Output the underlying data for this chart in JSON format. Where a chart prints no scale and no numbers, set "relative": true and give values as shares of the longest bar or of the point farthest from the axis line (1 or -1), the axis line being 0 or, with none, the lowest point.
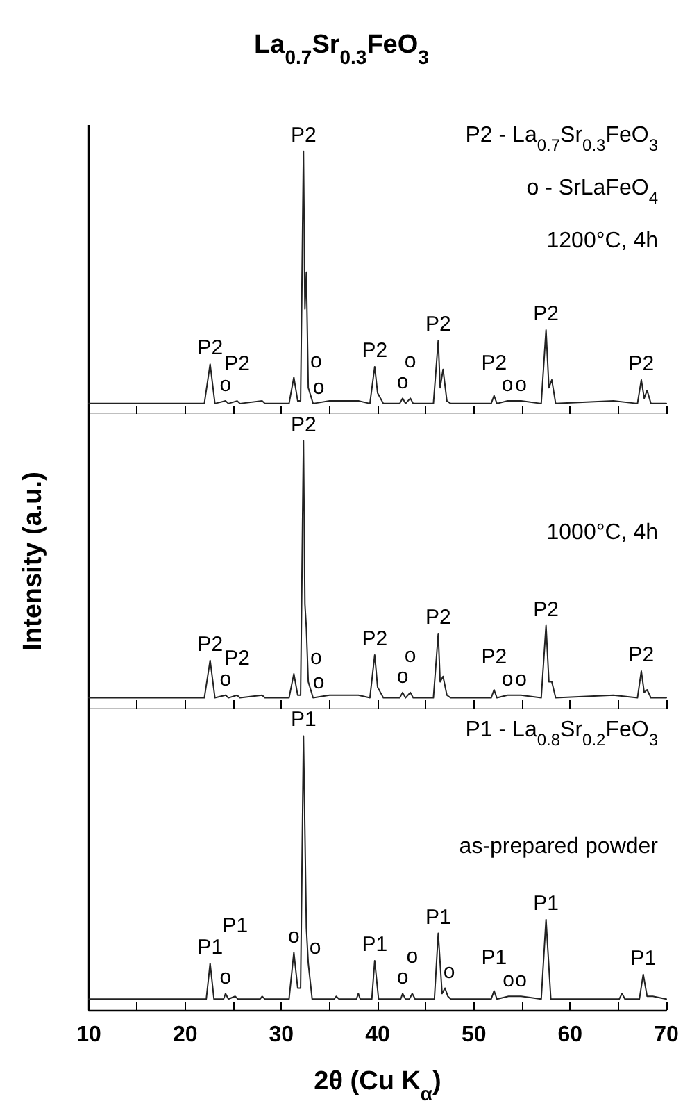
{
  "chart_data": [
    {
      "type": "line",
      "title": "La$_{0.7}$Sr$_{0.3}$FeO$_{3}$",
      "relative": true,
      "color": "#222222",
      "xlim": [
        10,
        70
      ],
      "xticks": [
        10,
        {
          "value": 15,
          "label": null
        },
        20,
        {
          "value": 25,
          "label": null
        },
        30,
        {
          "value": 35,
          "label": null
        },
        40,
        {
          "value": 45,
          "label": null
        },
        50,
        {
          "value": 55,
          "label": null
        },
        60,
        {
          "value": 65,
          "label": null
        },
        70
      ],
      "tick_labels": false,
      "x": [
        10,
        22.0,
        22.6,
        23.1,
        24.2,
        24.5,
        25.4,
        25.7,
        28,
        28.3,
        30.8,
        31.3,
        31.7,
        32.0,
        32.3,
        32.45,
        32.6,
        32.8,
        33.3,
        35,
        38,
        39.2,
        39.7,
        40.0,
        40.3,
        40.6,
        42.3,
        42.6,
        42.9,
        43.4,
        43.7,
        45.8,
        46.3,
        46.5,
        46.8,
        47.2,
        47.6,
        51.8,
        52.1,
        52.4,
        53.5,
        54.9,
        57.0,
        57.5,
        57.8,
        58.1,
        58.5,
        64.5,
        67.0,
        67.4,
        67.7,
        68.0,
        68.4,
        70
      ],
      "values": [
        0.04,
        0.04,
        0.19,
        0.04,
        0.05,
        0.04,
        0.05,
        0.04,
        0.05,
        0.04,
        0.04,
        0.14,
        0.05,
        0.05,
        1.0,
        0.4,
        0.54,
        0.1,
        0.04,
        0.05,
        0.05,
        0.04,
        0.18,
        0.08,
        0.06,
        0.04,
        0.04,
        0.06,
        0.04,
        0.06,
        0.04,
        0.04,
        0.28,
        0.1,
        0.17,
        0.05,
        0.04,
        0.04,
        0.07,
        0.04,
        0.05,
        0.05,
        0.04,
        0.32,
        0.1,
        0.13,
        0.04,
        0.05,
        0.04,
        0.13,
        0.06,
        0.09,
        0.04,
        0.04
      ],
      "annotations": [
        "P2 - La$_{0.7}$Sr$_{0.3}$FeO$_{3}$",
        "o - SrLaFeO$_{4}$",
        "1200°C, 4h",
        {
          "text": "P2",
          "x": 22.6,
          "y": 0.19
        },
        {
          "text": "o",
          "x": 24.2,
          "y": 0.05
        },
        {
          "text": "P2",
          "x": 25.4,
          "y": 0.05
        },
        {
          "text": "o",
          "x": 31.3,
          "y": 0.14
        },
        {
          "text": "P2",
          "x": 32.3,
          "y": 1.0
        },
        {
          "text": "o",
          "x": 33.3,
          "y": 0.04
        },
        {
          "text": "P2",
          "x": 39.7,
          "y": 0.18
        },
        {
          "text": "o",
          "x": 42.6,
          "y": 0.06
        },
        {
          "text": "o",
          "x": 43.4,
          "y": 0.06
        },
        {
          "text": "P2",
          "x": 46.3,
          "y": 0.28
        },
        {
          "text": "o",
          "x": 53.5,
          "y": 0.05
        },
        {
          "text": "o",
          "x": 54.9,
          "y": 0.05
        },
        {
          "text": "P2",
          "x": 52.1,
          "y": 0.07
        },
        {
          "text": "P2",
          "x": 57.5,
          "y": 0.32
        },
        {
          "text": "P2",
          "x": 67.4,
          "y": 0.13
        }
      ]
    },
    {
      "type": "line",
      "ylabel": "Intensity (a.u.)",
      "relative": true,
      "color": "#222222",
      "xlim": [
        10,
        70
      ],
      "xticks": [
        10,
        {
          "value": 15,
          "label": null
        },
        20,
        {
          "value": 25,
          "label": null
        },
        30,
        {
          "value": 35,
          "label": null
        },
        40,
        {
          "value": 45,
          "label": null
        },
        50,
        {
          "value": 55,
          "label": null
        },
        60,
        {
          "value": 65,
          "label": null
        },
        70
      ],
      "tick_labels": false,
      "x": [
        10,
        22.0,
        22.6,
        23.1,
        24.2,
        24.5,
        25.4,
        25.7,
        28,
        28.3,
        30.8,
        31.3,
        31.7,
        32.0,
        32.3,
        32.45,
        32.6,
        32.8,
        33.3,
        35,
        38,
        39.2,
        39.7,
        40.0,
        40.3,
        40.6,
        42.3,
        42.6,
        42.9,
        43.4,
        43.7,
        45.8,
        46.3,
        46.5,
        46.8,
        47.2,
        47.6,
        51.8,
        52.1,
        52.4,
        53.5,
        54.9,
        57.0,
        57.5,
        57.8,
        58.1,
        58.5,
        64.5,
        67.0,
        67.4,
        67.7,
        68.0,
        68.4,
        70
      ],
      "values": [
        0.04,
        0.04,
        0.18,
        0.04,
        0.05,
        0.04,
        0.05,
        0.04,
        0.05,
        0.04,
        0.04,
        0.13,
        0.05,
        0.05,
        1.0,
        0.39,
        0.3,
        0.1,
        0.04,
        0.05,
        0.05,
        0.04,
        0.2,
        0.08,
        0.06,
        0.04,
        0.04,
        0.06,
        0.04,
        0.06,
        0.04,
        0.04,
        0.28,
        0.1,
        0.12,
        0.05,
        0.04,
        0.04,
        0.07,
        0.04,
        0.05,
        0.05,
        0.04,
        0.31,
        0.1,
        0.1,
        0.04,
        0.05,
        0.04,
        0.14,
        0.06,
        0.07,
        0.04,
        0.04
      ],
      "annotations": [
        "1000°C, 4h",
        {
          "text": "P2",
          "x": 22.6,
          "y": 0.18
        },
        {
          "text": "o",
          "x": 24.2,
          "y": 0.05
        },
        {
          "text": "P2",
          "x": 25.4,
          "y": 0.05
        },
        {
          "text": "o",
          "x": 31.3,
          "y": 0.13
        },
        {
          "text": "P2",
          "x": 32.3,
          "y": 1.0
        },
        {
          "text": "o",
          "x": 33.3,
          "y": 0.04
        },
        {
          "text": "P2",
          "x": 39.7,
          "y": 0.2
        },
        {
          "text": "o",
          "x": 42.6,
          "y": 0.06
        },
        {
          "text": "o",
          "x": 43.4,
          "y": 0.06
        },
        {
          "text": "P2",
          "x": 46.3,
          "y": 0.28
        },
        {
          "text": "o",
          "x": 53.5,
          "y": 0.05
        },
        {
          "text": "o",
          "x": 54.9,
          "y": 0.05
        },
        {
          "text": "P2",
          "x": 52.1,
          "y": 0.07
        },
        {
          "text": "P2",
          "x": 57.5,
          "y": 0.31
        },
        {
          "text": "P2",
          "x": 67.4,
          "y": 0.14
        }
      ]
    },
    {
      "type": "line",
      "xlabel": "2θ (Cu K$_{α}$)",
      "relative": true,
      "color": "#222222",
      "xlim": [
        10,
        70
      ],
      "xticks": [
        10,
        {
          "value": 15,
          "label": null
        },
        20,
        {
          "value": 25,
          "label": null
        },
        30,
        {
          "value": 35,
          "label": null
        },
        40,
        {
          "value": 45,
          "label": null
        },
        50,
        {
          "value": 55,
          "label": null
        },
        60,
        {
          "value": 65,
          "label": null
        },
        70
      ],
      "tick_labels": "x",
      "x": [
        10,
        22.2,
        22.6,
        23.0,
        24.0,
        24.2,
        24.5,
        25.2,
        25.5,
        27.8,
        28.0,
        28.3,
        30.8,
        31.3,
        31.7,
        32.0,
        32.3,
        32.6,
        32.8,
        33.2,
        35.5,
        35.7,
        36,
        37.8,
        38.0,
        38.2,
        39.4,
        39.7,
        40.1,
        42.4,
        42.6,
        42.9,
        43.3,
        43.6,
        43.9,
        45.9,
        46.3,
        46.7,
        47.0,
        47.3,
        47.6,
        51.8,
        52.1,
        52.4,
        53.6,
        54.9,
        57.0,
        57.5,
        58.0,
        65.1,
        65.4,
        65.7,
        67.2,
        67.6,
        68.0,
        68.6,
        70
      ],
      "values": [
        0.04,
        0.04,
        0.17,
        0.04,
        0.04,
        0.06,
        0.04,
        0.05,
        0.04,
        0.04,
        0.05,
        0.04,
        0.04,
        0.21,
        0.08,
        0.08,
        1.0,
        0.3,
        0.17,
        0.04,
        0.04,
        0.05,
        0.04,
        0.04,
        0.06,
        0.04,
        0.04,
        0.18,
        0.04,
        0.04,
        0.06,
        0.04,
        0.04,
        0.06,
        0.04,
        0.04,
        0.28,
        0.06,
        0.08,
        0.05,
        0.04,
        0.04,
        0.07,
        0.04,
        0.05,
        0.05,
        0.04,
        0.33,
        0.04,
        0.04,
        0.06,
        0.04,
        0.04,
        0.13,
        0.05,
        0.05,
        0.04
      ],
      "annotations": [
        "P1 - La$_{0.8}$Sr$_{0.2}$FeO$_{3}$",
        "as-prepared powder",
        {
          "text": "P1",
          "x": 22.6,
          "y": 0.17
        },
        {
          "text": "o",
          "x": 24.2,
          "y": 0.06
        },
        {
          "text": "P1",
          "x": 25.2,
          "y": 0.05
        },
        {
          "text": "o",
          "x": 31.3,
          "y": 0.21
        },
        {
          "text": "P1",
          "x": 32.3,
          "y": 1.0
        },
        {
          "text": "o",
          "x": 32.8,
          "y": 0.17
        },
        {
          "text": "P1",
          "x": 39.7,
          "y": 0.18
        },
        {
          "text": "o",
          "x": 42.6,
          "y": 0.06
        },
        {
          "text": "o",
          "x": 43.6,
          "y": 0.06
        },
        {
          "text": "P1",
          "x": 46.3,
          "y": 0.28
        },
        {
          "text": "o",
          "x": 47.0,
          "y": 0.08
        },
        {
          "text": "o",
          "x": 53.6,
          "y": 0.05
        },
        {
          "text": "o",
          "x": 54.9,
          "y": 0.05
        },
        {
          "text": "P1",
          "x": 52.1,
          "y": 0.07
        },
        {
          "text": "P1",
          "x": 57.5,
          "y": 0.33
        },
        {
          "text": "P1",
          "x": 67.6,
          "y": 0.13
        }
      ]
    }
  ]
}
